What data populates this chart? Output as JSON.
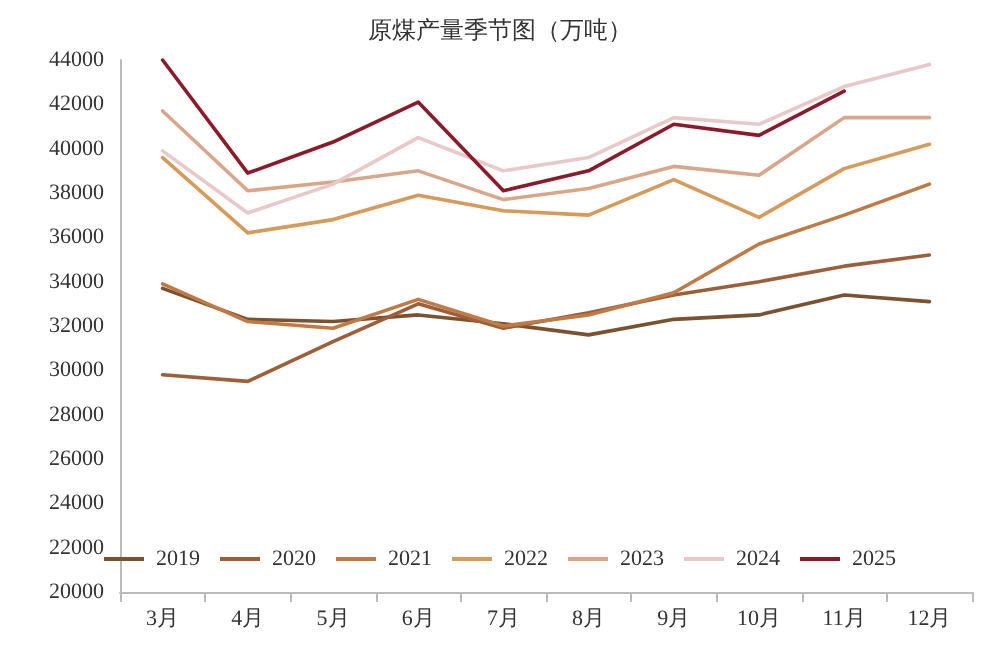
{
  "chart_data": {
    "type": "line",
    "title": "原煤产量季节图（万吨）",
    "categories": [
      "3月",
      "4月",
      "5月",
      "6月",
      "7月",
      "8月",
      "9月",
      "10月",
      "11月",
      "12月"
    ],
    "series": [
      {
        "name": "2019",
        "color": "#7a5230",
        "values": [
          33700,
          32300,
          32200,
          32500,
          32100,
          31600,
          32300,
          32500,
          33400,
          33100
        ]
      },
      {
        "name": "2020",
        "color": "#9c5f3a",
        "values": [
          29800,
          29500,
          31300,
          33000,
          31900,
          32600,
          33400,
          34000,
          34700,
          35200
        ]
      },
      {
        "name": "2021",
        "color": "#c07a45",
        "values": [
          33900,
          32200,
          31900,
          33200,
          32000,
          32500,
          33500,
          35700,
          37000,
          38400
        ]
      },
      {
        "name": "2022",
        "color": "#d69a5a",
        "values": [
          39600,
          36200,
          36800,
          37900,
          37200,
          37000,
          38600,
          36900,
          39100,
          40200
        ]
      },
      {
        "name": "2023",
        "color": "#d9a68a",
        "values": [
          41700,
          38100,
          38500,
          39000,
          37700,
          38200,
          39200,
          38800,
          41400,
          41400
        ]
      },
      {
        "name": "2024",
        "color": "#e8c8c8",
        "values": [
          39900,
          37100,
          38400,
          40500,
          39000,
          39600,
          41400,
          41100,
          42800,
          43800
        ]
      },
      {
        "name": "2025",
        "color": "#8b1a2b",
        "values": [
          44000,
          38900,
          40300,
          42100,
          38100,
          39000,
          41100,
          40600,
          42600,
          null
        ]
      }
    ],
    "ylim": [
      20000,
      44000
    ],
    "yticks": [
      20000,
      22000,
      24000,
      26000,
      28000,
      30000,
      32000,
      34000,
      36000,
      38000,
      40000,
      42000,
      44000
    ],
    "grid": false,
    "legend": "bottom",
    "marker": "none",
    "line_style": "solid"
  }
}
